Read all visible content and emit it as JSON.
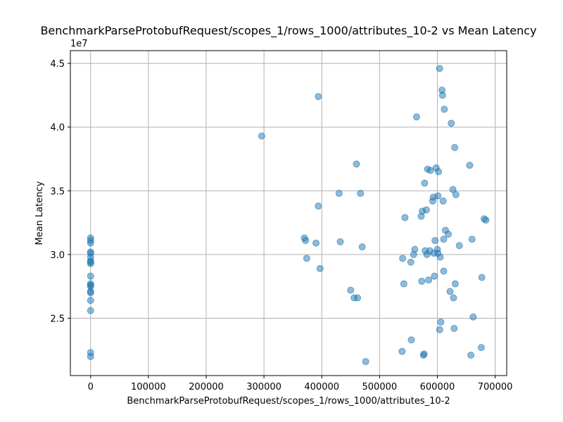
{
  "chart_data": {
    "type": "scatter",
    "title": "BenchmarkParseProtobufRequest/scopes_1/rows_1000/attributes_10-2 vs Mean Latency",
    "xlabel": "BenchmarkParseProtobufRequest/scopes_1/rows_1000/attributes_10-2",
    "ylabel": "Mean Latency",
    "y_scale_label": "1e7",
    "xlim": [
      -35000,
      720000
    ],
    "ylim": [
      20500000,
      46000000
    ],
    "x_ticks": [
      0,
      100000,
      200000,
      300000,
      400000,
      500000,
      600000,
      700000
    ],
    "x_tick_labels": [
      "0",
      "100000",
      "200000",
      "300000",
      "400000",
      "500000",
      "600000",
      "700000"
    ],
    "y_ticks": [
      25000000,
      30000000,
      35000000,
      40000000,
      45000000
    ],
    "y_tick_labels": [
      "2.5",
      "3.0",
      "3.5",
      "4.0",
      "4.5"
    ],
    "grid": true,
    "color": "#1f77b4",
    "points": [
      [
        0,
        31300000
      ],
      [
        0,
        31100000
      ],
      [
        0,
        30900000
      ],
      [
        0,
        30200000
      ],
      [
        0,
        30100000
      ],
      [
        0,
        29800000
      ],
      [
        0,
        29500000
      ],
      [
        0,
        29400000
      ],
      [
        0,
        29300000
      ],
      [
        0,
        28300000
      ],
      [
        0,
        27700000
      ],
      [
        0,
        27600000
      ],
      [
        0,
        27500000
      ],
      [
        0,
        27100000
      ],
      [
        0,
        27000000
      ],
      [
        0,
        26400000
      ],
      [
        0,
        25600000
      ],
      [
        0,
        22300000
      ],
      [
        0,
        22000000
      ],
      [
        296000,
        39300000
      ],
      [
        370000,
        31300000
      ],
      [
        372000,
        31100000
      ],
      [
        374000,
        29700000
      ],
      [
        390000,
        30900000
      ],
      [
        394000,
        42400000
      ],
      [
        394000,
        33800000
      ],
      [
        397000,
        28900000
      ],
      [
        430000,
        34800000
      ],
      [
        432000,
        31000000
      ],
      [
        450000,
        27200000
      ],
      [
        456000,
        26600000
      ],
      [
        460000,
        37100000
      ],
      [
        462000,
        26600000
      ],
      [
        467000,
        34800000
      ],
      [
        470000,
        30600000
      ],
      [
        476000,
        21600000
      ],
      [
        539000,
        22400000
      ],
      [
        540000,
        29700000
      ],
      [
        542000,
        27700000
      ],
      [
        544000,
        32900000
      ],
      [
        554000,
        29400000
      ],
      [
        555000,
        23300000
      ],
      [
        559000,
        30000000
      ],
      [
        561000,
        30400000
      ],
      [
        564000,
        40800000
      ],
      [
        572000,
        33000000
      ],
      [
        573000,
        27900000
      ],
      [
        574000,
        33400000
      ],
      [
        576000,
        22100000
      ],
      [
        577000,
        22200000
      ],
      [
        578000,
        35600000
      ],
      [
        579000,
        30300000
      ],
      [
        581000,
        33500000
      ],
      [
        582000,
        30000000
      ],
      [
        583000,
        36700000
      ],
      [
        585000,
        28000000
      ],
      [
        587000,
        30300000
      ],
      [
        588000,
        36600000
      ],
      [
        592000,
        34200000
      ],
      [
        593000,
        34500000
      ],
      [
        594000,
        30100000
      ],
      [
        595000,
        28300000
      ],
      [
        596000,
        31100000
      ],
      [
        598000,
        36800000
      ],
      [
        600000,
        30400000
      ],
      [
        601000,
        34600000
      ],
      [
        601000,
        30100000
      ],
      [
        602000,
        36500000
      ],
      [
        604000,
        44600000
      ],
      [
        604000,
        24100000
      ],
      [
        605000,
        29800000
      ],
      [
        606000,
        24700000
      ],
      [
        608000,
        42900000
      ],
      [
        609000,
        42500000
      ],
      [
        610000,
        34200000
      ],
      [
        611000,
        31200000
      ],
      [
        611000,
        28700000
      ],
      [
        612000,
        41400000
      ],
      [
        614000,
        31900000
      ],
      [
        619000,
        31600000
      ],
      [
        622000,
        27100000
      ],
      [
        624000,
        40300000
      ],
      [
        627000,
        35100000
      ],
      [
        628000,
        26600000
      ],
      [
        629000,
        24200000
      ],
      [
        630000,
        38400000
      ],
      [
        631000,
        27700000
      ],
      [
        632000,
        34700000
      ],
      [
        638000,
        30700000
      ],
      [
        656000,
        37000000
      ],
      [
        658000,
        22100000
      ],
      [
        660000,
        31200000
      ],
      [
        662000,
        25100000
      ],
      [
        676000,
        22700000
      ],
      [
        677000,
        28200000
      ],
      [
        681000,
        32800000
      ],
      [
        684000,
        32700000
      ]
    ]
  }
}
